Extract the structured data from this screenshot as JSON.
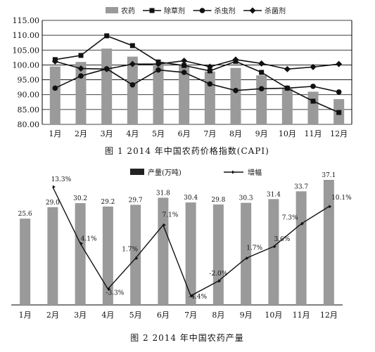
{
  "chart_data": [
    {
      "type": "bar+line",
      "title": "图 1   2014 年中国农药价格指数(CAPI)",
      "categories": [
        "1月",
        "2月",
        "3月",
        "4月",
        "5月",
        "6月",
        "7月",
        "8月",
        "9月",
        "10月",
        "11月",
        "12月"
      ],
      "ylim": [
        80,
        115
      ],
      "yticks": [
        "80.00",
        "85.00",
        "90.00",
        "95.00",
        "100.00",
        "105.00",
        "110.00",
        "115.00"
      ],
      "grid": true,
      "legend_position": "top",
      "series": [
        {
          "name": "农药",
          "kind": "bar",
          "color": "#9a9a9a",
          "values": [
            99.5,
            101.0,
            105.5,
            102.8,
            100.5,
            100.0,
            97.8,
            99.0,
            96.5,
            92.0,
            91.0,
            88.5
          ]
        },
        {
          "name": "除草剂",
          "kind": "line",
          "marker": "square",
          "color": "#111111",
          "values": [
            101.8,
            103.2,
            109.8,
            106.5,
            101.0,
            99.8,
            98.0,
            101.2,
            97.5,
            92.2,
            87.8,
            84.0
          ]
        },
        {
          "name": "杀虫剂",
          "kind": "line",
          "marker": "circle",
          "color": "#111111",
          "values": [
            92.2,
            96.3,
            98.7,
            93.3,
            98.3,
            97.5,
            93.6,
            91.4,
            92.0,
            92.2,
            92.8,
            90.9
          ]
        },
        {
          "name": "杀菌剂",
          "kind": "line",
          "marker": "diamond",
          "color": "#111111",
          "values": [
            101.2,
            98.8,
            98.6,
            100.3,
            100.3,
            101.4,
            99.4,
            101.8,
            100.5,
            98.6,
            99.3,
            100.3
          ]
        }
      ]
    },
    {
      "type": "bar+line",
      "title": "图 2   2014 年中国农药产量",
      "categories": [
        "1月",
        "2月",
        "3月",
        "4月",
        "5月",
        "6月",
        "7月",
        "8月",
        "9月",
        "10月",
        "11月",
        "12月"
      ],
      "legend_position": "top",
      "grid": false,
      "series": [
        {
          "name": "产量(万吨)",
          "kind": "bar",
          "color": "#9a9a9a",
          "values": [
            25.6,
            29.0,
            30.2,
            29.2,
            29.7,
            31.8,
            30.4,
            29.8,
            30.3,
            31.4,
            33.7,
            37.1
          ],
          "labels": [
            "25.6",
            "29.0",
            "30.2",
            "29.2",
            "29.7",
            "31.8",
            "30.4",
            "29.8",
            "30.3",
            "31.4",
            "33.7",
            "37.1"
          ]
        },
        {
          "name": "增幅",
          "kind": "line",
          "color": "#111111",
          "values": [
            null,
            13.3,
            4.1,
            -3.3,
            1.7,
            7.1,
            -4.4,
            -2.0,
            1.7,
            3.6,
            7.3,
            10.1
          ],
          "labels": [
            "",
            "13.3%",
            "4.1%",
            "-3.3%",
            "1.7%",
            "7.1%",
            "-4.4%",
            "-2.0%",
            "1.7%",
            "3.6%",
            "7.3%",
            "10.1%"
          ]
        }
      ]
    }
  ]
}
